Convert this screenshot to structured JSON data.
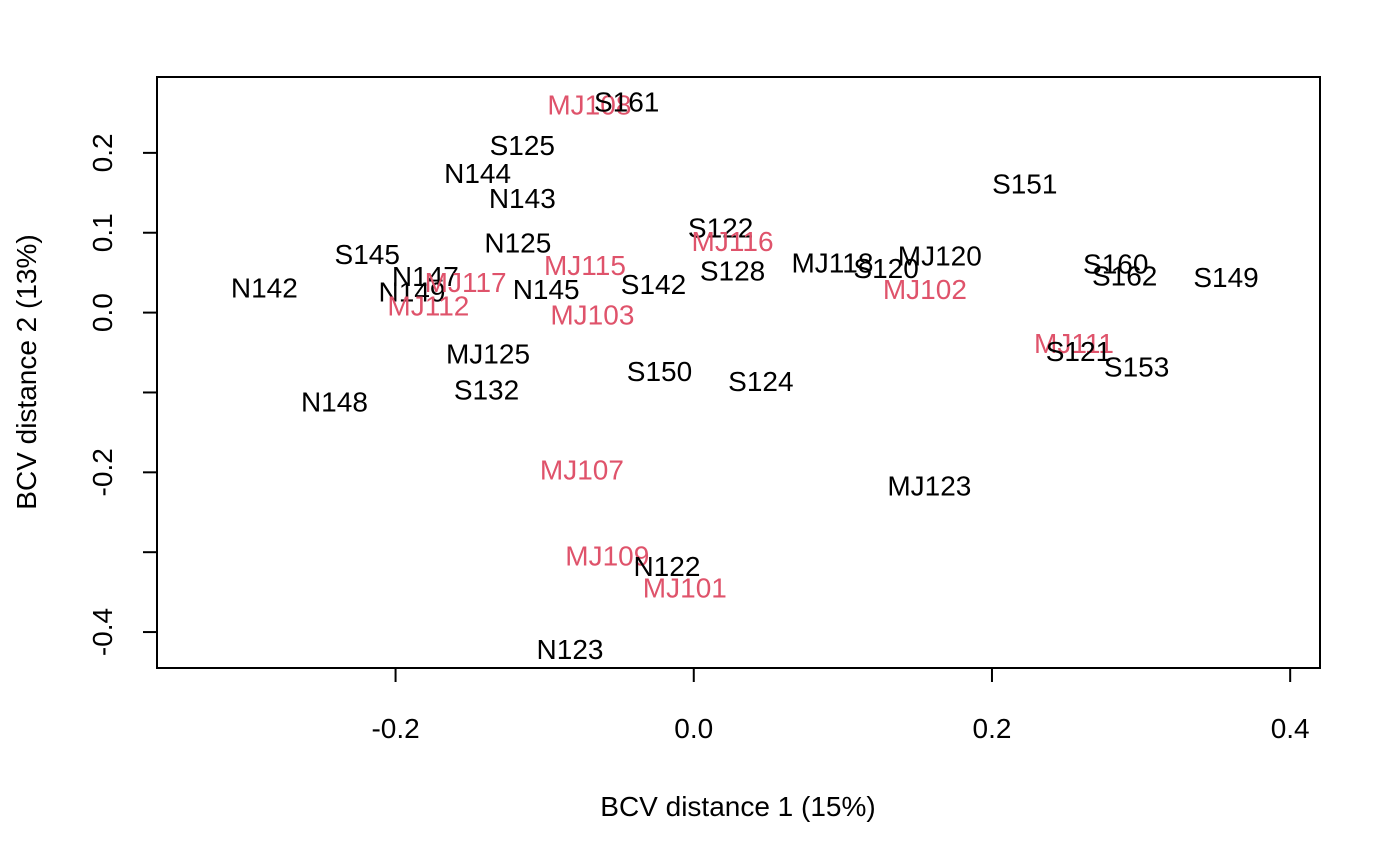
{
  "chart_data": {
    "type": "scatter",
    "title": "",
    "xlabel": "BCV distance 1 (15%)",
    "ylabel": "BCV distance 2 (13%)",
    "xlim": [
      -0.36,
      0.42
    ],
    "ylim": [
      -0.445,
      0.295
    ],
    "xticks": [
      -0.2,
      0.0,
      0.2,
      0.4
    ],
    "xtick_labels": [
      "-0.2",
      "0.0",
      "0.2",
      "0.4"
    ],
    "yticks": [
      -0.4,
      -0.3,
      -0.2,
      -0.1,
      0.0,
      0.1,
      0.2
    ],
    "ytick_labels": [
      "-0.4",
      "",
      "-0.2",
      "",
      "0.0",
      "0.1",
      "0.2"
    ],
    "grid": false,
    "colors": {
      "group_black": "#000000",
      "group_red": "#DF536B"
    },
    "points": [
      {
        "label": "MJ108",
        "x": -0.07,
        "y": 0.26,
        "group": "red"
      },
      {
        "label": "S161",
        "x": -0.045,
        "y": 0.264,
        "group": "black"
      },
      {
        "label": "S125",
        "x": -0.115,
        "y": 0.209,
        "group": "black"
      },
      {
        "label": "N144",
        "x": -0.145,
        "y": 0.174,
        "group": "black"
      },
      {
        "label": "N143",
        "x": -0.115,
        "y": 0.143,
        "group": "black"
      },
      {
        "label": "N125",
        "x": -0.118,
        "y": 0.087,
        "group": "black"
      },
      {
        "label": "S145",
        "x": -0.219,
        "y": 0.073,
        "group": "black"
      },
      {
        "label": "N142",
        "x": -0.288,
        "y": 0.031,
        "group": "black"
      },
      {
        "label": "N147",
        "x": -0.18,
        "y": 0.045,
        "group": "black"
      },
      {
        "label": "N149",
        "x": -0.189,
        "y": 0.026,
        "group": "black"
      },
      {
        "label": "MJ117",
        "x": -0.153,
        "y": 0.038,
        "group": "red"
      },
      {
        "label": "MJ112",
        "x": -0.178,
        "y": 0.008,
        "group": "red"
      },
      {
        "label": "N145",
        "x": -0.099,
        "y": 0.029,
        "group": "black"
      },
      {
        "label": "MJ115",
        "x": -0.073,
        "y": 0.059,
        "group": "red"
      },
      {
        "label": "MJ103",
        "x": -0.068,
        "y": -0.003,
        "group": "red"
      },
      {
        "label": "S142",
        "x": -0.027,
        "y": 0.035,
        "group": "black"
      },
      {
        "label": "S122",
        "x": 0.018,
        "y": 0.106,
        "group": "black"
      },
      {
        "label": "MJ116",
        "x": 0.026,
        "y": 0.089,
        "group": "red"
      },
      {
        "label": "S128",
        "x": 0.026,
        "y": 0.052,
        "group": "black"
      },
      {
        "label": "MJ118",
        "x": 0.093,
        "y": 0.062,
        "group": "black"
      },
      {
        "label": "S120",
        "x": 0.129,
        "y": 0.055,
        "group": "black"
      },
      {
        "label": "MJ120",
        "x": 0.165,
        "y": 0.071,
        "group": "black"
      },
      {
        "label": "MJ102",
        "x": 0.155,
        "y": 0.029,
        "group": "red"
      },
      {
        "label": "S151",
        "x": 0.222,
        "y": 0.161,
        "group": "black"
      },
      {
        "label": "S160",
        "x": 0.283,
        "y": 0.061,
        "group": "black"
      },
      {
        "label": "S162",
        "x": 0.289,
        "y": 0.046,
        "group": "black"
      },
      {
        "label": "S149",
        "x": 0.357,
        "y": 0.044,
        "group": "black"
      },
      {
        "label": "MJ111",
        "x": 0.255,
        "y": -0.039,
        "group": "red"
      },
      {
        "label": "S121",
        "x": 0.258,
        "y": -0.049,
        "group": "black"
      },
      {
        "label": "S153",
        "x": 0.297,
        "y": -0.068,
        "group": "black"
      },
      {
        "label": "MJ125",
        "x": -0.138,
        "y": -0.052,
        "group": "black"
      },
      {
        "label": "S132",
        "x": -0.139,
        "y": -0.097,
        "group": "black"
      },
      {
        "label": "N148",
        "x": -0.241,
        "y": -0.112,
        "group": "black"
      },
      {
        "label": "S150",
        "x": -0.023,
        "y": -0.074,
        "group": "black"
      },
      {
        "label": "S124",
        "x": 0.045,
        "y": -0.086,
        "group": "black"
      },
      {
        "label": "MJ107",
        "x": -0.075,
        "y": -0.197,
        "group": "red"
      },
      {
        "label": "MJ123",
        "x": 0.158,
        "y": -0.217,
        "group": "black"
      },
      {
        "label": "MJ109",
        "x": -0.058,
        "y": -0.305,
        "group": "red"
      },
      {
        "label": "N122",
        "x": -0.018,
        "y": -0.318,
        "group": "black"
      },
      {
        "label": "MJ101",
        "x": -0.006,
        "y": -0.345,
        "group": "red"
      },
      {
        "label": "N123",
        "x": -0.083,
        "y": -0.422,
        "group": "black"
      }
    ]
  }
}
